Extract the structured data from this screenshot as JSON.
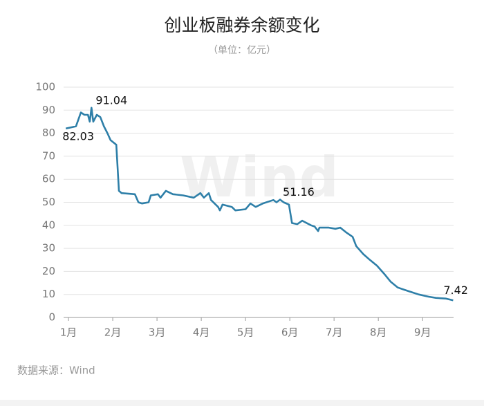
{
  "chart_data": {
    "type": "line",
    "title": "创业板融券余额变化",
    "subtitle": "（单位：亿元）",
    "source": "数据来源：Wind",
    "watermark": "Wind",
    "xlim": [
      0.89,
      9.7
    ],
    "xticks": [
      {
        "value": 1,
        "label": "1月"
      },
      {
        "value": 2,
        "label": "2月"
      },
      {
        "value": 3,
        "label": "3月"
      },
      {
        "value": 4,
        "label": "4月"
      },
      {
        "value": 5,
        "label": "5月"
      },
      {
        "value": 6,
        "label": "6月"
      },
      {
        "value": 7,
        "label": "7月"
      },
      {
        "value": 8,
        "label": "8月"
      },
      {
        "value": 9,
        "label": "9月"
      }
    ],
    "ylim": [
      0,
      100
    ],
    "yticks": [
      0,
      10,
      20,
      30,
      40,
      50,
      60,
      70,
      80,
      90,
      100
    ],
    "grid": true,
    "x": [
      0.94,
      1.17,
      1.28,
      1.36,
      1.44,
      1.48,
      1.52,
      1.56,
      1.64,
      1.72,
      1.8,
      1.88,
      1.95,
      2.08,
      2.14,
      2.2,
      2.5,
      2.58,
      2.66,
      2.81,
      2.86,
      3.02,
      3.08,
      3.2,
      3.36,
      3.59,
      3.83,
      3.98,
      4.06,
      4.17,
      4.22,
      4.38,
      4.42,
      4.48,
      4.69,
      4.77,
      5.0,
      5.11,
      5.23,
      5.39,
      5.63,
      5.7,
      5.78,
      5.86,
      5.98,
      6.05,
      6.17,
      6.28,
      6.48,
      6.56,
      6.64,
      6.67,
      6.88,
      7.03,
      7.14,
      7.27,
      7.42,
      7.5,
      7.66,
      7.81,
      7.97,
      8.13,
      8.28,
      8.44,
      8.59,
      8.75,
      8.91,
      9.14,
      9.3,
      9.53,
      9.69
    ],
    "series": [
      {
        "name": "创业板融券余额",
        "color": "#2e7fa8",
        "values": [
          82.03,
          83,
          89,
          88,
          88,
          85,
          91.04,
          85,
          88,
          87,
          83,
          80,
          77,
          75,
          55,
          54,
          53.5,
          50,
          49.5,
          50,
          53,
          53.5,
          52,
          55,
          53.5,
          53,
          52,
          54,
          52,
          54,
          51,
          48,
          46.5,
          49,
          48,
          46.5,
          47,
          49.5,
          48,
          49.5,
          51,
          50,
          51.16,
          50,
          49,
          41,
          40.5,
          42,
          40,
          39.5,
          37.5,
          39,
          39,
          38.5,
          39,
          37,
          35,
          31,
          27.5,
          25,
          22.5,
          19,
          15.5,
          13,
          12,
          11,
          10,
          9,
          8.5,
          8.2,
          7.42
        ]
      }
    ],
    "annotations": [
      {
        "label": "82.03",
        "x": 0.94,
        "value": 82.03
      },
      {
        "label": "91.04",
        "x": 1.52,
        "value": 91.04
      },
      {
        "label": "51.16",
        "x": 5.78,
        "value": 51.16
      },
      {
        "label": "7.42",
        "x": 9.69,
        "value": 7.42
      }
    ]
  }
}
